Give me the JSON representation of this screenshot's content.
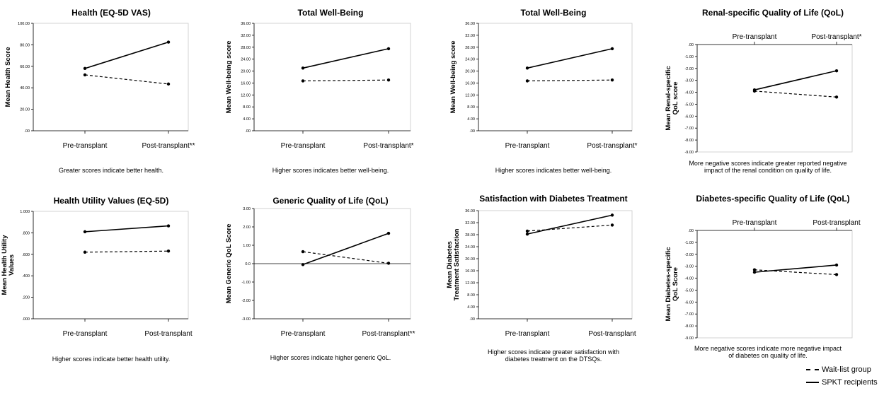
{
  "legend": {
    "waitlist_label": "Wait-list group",
    "spkt_label": "SPKT recipients"
  },
  "chart_data": [
    {
      "type": "line",
      "title": "Health (EQ-5D VAS)",
      "ylabel": "Mean Health Score",
      "xlabel": "",
      "categories": [
        "Pre-transplant",
        "Post-transplant**"
      ],
      "yticks": [
        ".00",
        "20.00",
        "40.00",
        "60.00",
        "80.00",
        "100.00"
      ],
      "ylim": [
        0,
        100
      ],
      "x_axis_position": "bottom",
      "caption": "Greater scores indicate better health.",
      "series": [
        {
          "name": "SPKT recipients",
          "values": [
            58,
            82.5
          ]
        },
        {
          "name": "Wait-list group",
          "values": [
            52,
            43.5
          ]
        }
      ]
    },
    {
      "type": "line",
      "title": "Total Well-Being",
      "ylabel": "Mean Well-being score",
      "xlabel": "",
      "categories": [
        "Pre-transplant",
        "Post-transplant*"
      ],
      "yticks": [
        ".00",
        "4.00",
        "8.00",
        "12.00",
        "16.00",
        "20.00",
        "24.00",
        "28.00",
        "32.00",
        "36.00"
      ],
      "ylim": [
        0,
        36
      ],
      "x_axis_position": "bottom",
      "caption": "Higher scores indicates better well-being.",
      "series": [
        {
          "name": "SPKT recipients",
          "values": [
            21,
            27.5
          ]
        },
        {
          "name": "Wait-list group",
          "values": [
            16.7,
            17
          ]
        }
      ]
    },
    {
      "type": "line",
      "title": "Total Well-Being",
      "ylabel": "Mean Well-being score",
      "xlabel": "",
      "categories": [
        "Pre-transplant",
        "Post-transplant*"
      ],
      "yticks": [
        ".00",
        "4.00",
        "8.00",
        "12.00",
        "16.00",
        "20.00",
        "24.00",
        "28.00",
        "32.00",
        "36.00"
      ],
      "ylim": [
        0,
        36
      ],
      "x_axis_position": "bottom",
      "caption": "Higher scores indicates better well-being.",
      "series": [
        {
          "name": "SPKT recipients",
          "values": [
            21,
            27.5
          ]
        },
        {
          "name": "Wait-list group",
          "values": [
            16.7,
            17
          ]
        }
      ]
    },
    {
      "type": "line",
      "title": "Renal-specific Quality of Life (QoL)",
      "ylabel": "Mean Renal-specific QoL score",
      "xlabel": "",
      "categories": [
        "Pre-transplant",
        "Post-transplant*"
      ],
      "yticks": [
        ".00",
        "-1.00",
        "-2.00",
        "-3.00",
        "-4.00",
        "-5.00",
        "-6.00",
        "-7.00",
        "-8.00",
        "-9.00"
      ],
      "ylim": [
        -9,
        0
      ],
      "x_axis_position": "top",
      "caption": "More negative scores indicate greater reported negative impact of the renal condition on quality of life.",
      "series": [
        {
          "name": "SPKT recipients",
          "values": [
            -3.8,
            -2.2
          ]
        },
        {
          "name": "Wait-list group",
          "values": [
            -3.9,
            -4.4
          ]
        }
      ]
    },
    {
      "type": "line",
      "title": "Health Utility Values (EQ-5D)",
      "ylabel": "Mean Health Utility Values",
      "xlabel": "",
      "categories": [
        "Pre-transplant",
        "Post-transplant"
      ],
      "yticks": [
        ".000",
        ".200",
        ".400",
        ".600",
        ".800",
        "1.000"
      ],
      "ylim": [
        0,
        1
      ],
      "x_axis_position": "bottom",
      "caption": "Higher scores indicate better health utility.",
      "series": [
        {
          "name": "SPKT recipients",
          "values": [
            0.81,
            0.865
          ]
        },
        {
          "name": "Wait-list group",
          "values": [
            0.62,
            0.63
          ]
        }
      ]
    },
    {
      "type": "line",
      "title": "Generic Quality of Life (QoL)",
      "ylabel": "Mean Generic QoL Score",
      "xlabel": "",
      "categories": [
        "Pre-transplant",
        "Post-transplant**"
      ],
      "yticks": [
        "-3.00",
        "-2.00",
        "-1.00",
        "0.0",
        "1.00",
        "2.00",
        "3.00"
      ],
      "ylim": [
        -3,
        3
      ],
      "x_axis_position": "bottom",
      "zero_line": true,
      "caption": "Higher scores indicate higher generic QoL.",
      "series": [
        {
          "name": "SPKT recipients",
          "values": [
            -0.05,
            1.65
          ]
        },
        {
          "name": "Wait-list group",
          "values": [
            0.65,
            0.02
          ]
        }
      ]
    },
    {
      "type": "line",
      "title": "Satisfaction with Diabetes Treatment",
      "ylabel": "Mean Diabetes Treatment Satisfaction",
      "xlabel": "",
      "categories": [
        "Pre-transplant",
        "Post-transplant"
      ],
      "yticks": [
        ".00",
        "4.00",
        "8.00",
        "12.00",
        "16.00",
        "20.00",
        "24.00",
        "28.00",
        "32.00",
        "36.00"
      ],
      "ylim": [
        0,
        36
      ],
      "x_axis_position": "bottom",
      "caption": "Higher scores indicate greater satisfaction with diabetes treatment on the DTSQs.",
      "series": [
        {
          "name": "SPKT recipients",
          "values": [
            28.2,
            34.5
          ]
        },
        {
          "name": "Wait-list group",
          "values": [
            29.2,
            31.2
          ]
        }
      ]
    },
    {
      "type": "line",
      "title": "Diabetes-specific Quality of Life (QoL)",
      "ylabel": "Mean Diabetes-specific QoL Score",
      "xlabel": "",
      "categories": [
        "Pre-transplant",
        "Post-transplant"
      ],
      "yticks": [
        ".00",
        "-1.00",
        "-2.00",
        "-3.00",
        "-4.00",
        "-5.00",
        "-6.00",
        "-7.00",
        "-8.00",
        "-9.00"
      ],
      "ylim": [
        -9,
        0
      ],
      "x_axis_position": "top",
      "caption": "More negative scores indicate more negative impact of diabetes on quality of life.",
      "series": [
        {
          "name": "SPKT recipients",
          "values": [
            -3.5,
            -2.9
          ]
        },
        {
          "name": "Wait-list group",
          "values": [
            -3.3,
            -3.7
          ]
        }
      ]
    }
  ]
}
